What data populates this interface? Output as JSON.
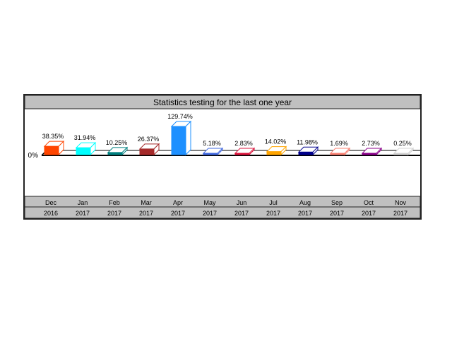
{
  "chart_data": {
    "type": "bar",
    "title": "Statistics testing for the last one year",
    "y_label_text": "0%",
    "bar_style": "3d",
    "grid": false,
    "categories": [
      {
        "month": "Dec",
        "year": "2016"
      },
      {
        "month": "Jan",
        "year": "2017"
      },
      {
        "month": "Feb",
        "year": "2017"
      },
      {
        "month": "Mar",
        "year": "2017"
      },
      {
        "month": "Apr",
        "year": "2017"
      },
      {
        "month": "May",
        "year": "2017"
      },
      {
        "month": "Jun",
        "year": "2017"
      },
      {
        "month": "Jul",
        "year": "2017"
      },
      {
        "month": "Aug",
        "year": "2017"
      },
      {
        "month": "Sep",
        "year": "2017"
      },
      {
        "month": "Oct",
        "year": "2017"
      },
      {
        "month": "Nov",
        "year": "2017"
      }
    ],
    "values": [
      38.35,
      31.94,
      10.25,
      26.37,
      129.74,
      5.18,
      2.83,
      14.02,
      11.98,
      1.69,
      2.73,
      0.25
    ],
    "value_labels": [
      "38.35%",
      "31.94%",
      "10.25%",
      "26.37%",
      "129.74%",
      "5.18%",
      "2.83%",
      "14.02%",
      "11.98%",
      "1.69%",
      "2.73%",
      "0.25%"
    ],
    "colors": [
      "#ff4500",
      "#00ffff",
      "#008080",
      "#a52a2a",
      "#1e90ff",
      "#4169e1",
      "#dc143c",
      "#ffa500",
      "#00008b",
      "#fa8072",
      "#8b008b",
      "#d3d3d3"
    ]
  },
  "theme": {
    "title_bg": "#c0c0c0",
    "label_row_bg": "#c0c0c0",
    "text": "#000000"
  }
}
